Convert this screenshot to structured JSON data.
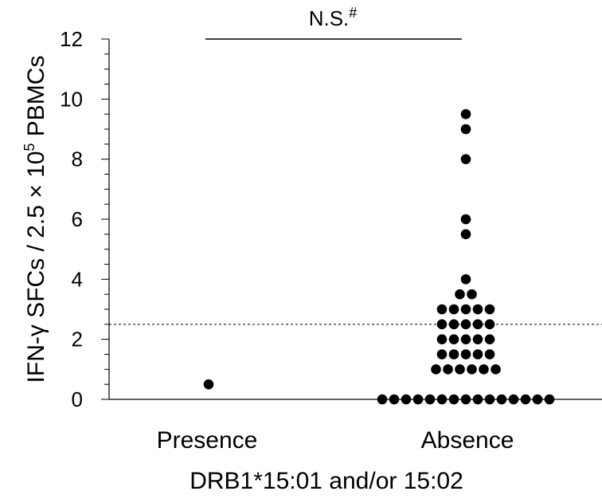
{
  "chart_data": {
    "type": "scatter",
    "subtype": "dot plot",
    "title": "",
    "xlabel": "DRB1*15:01 and/or 15:02",
    "ylabel": "IFN-γ SFCs / 2.5 × 10",
    "ylabel_superscript": "5",
    "ylabel_suffix": " PBMCs",
    "categories": [
      "Presence",
      "Absence"
    ],
    "ylim": [
      0,
      12
    ],
    "yticks": [
      "0",
      "2",
      "4",
      "6",
      "8",
      "10",
      "12"
    ],
    "minor_tick_step": 0.5,
    "grid": false,
    "threshold": 2.5,
    "threshold_style": "dashed",
    "significance": {
      "label": "N.S.",
      "superscript": "#",
      "between": [
        "Presence",
        "Absence"
      ]
    },
    "series": [
      {
        "category": "Presence",
        "values": [
          0.5
        ]
      },
      {
        "category": "Absence",
        "values": [
          9.5,
          9.0,
          8.0,
          6.0,
          5.5,
          4.0,
          3.5,
          3.5,
          3.0,
          3.0,
          3.0,
          3.0,
          3.0,
          2.5,
          2.5,
          2.5,
          2.5,
          2.5,
          2.0,
          2.0,
          2.0,
          2.0,
          2.0,
          1.5,
          1.5,
          1.5,
          1.5,
          1.5,
          1.0,
          1.0,
          1.0,
          1.0,
          1.0,
          1.0,
          0,
          0,
          0,
          0,
          0,
          0,
          0,
          0,
          0,
          0,
          0,
          0,
          0,
          0,
          0
        ]
      }
    ],
    "marker_color": "#000000"
  }
}
